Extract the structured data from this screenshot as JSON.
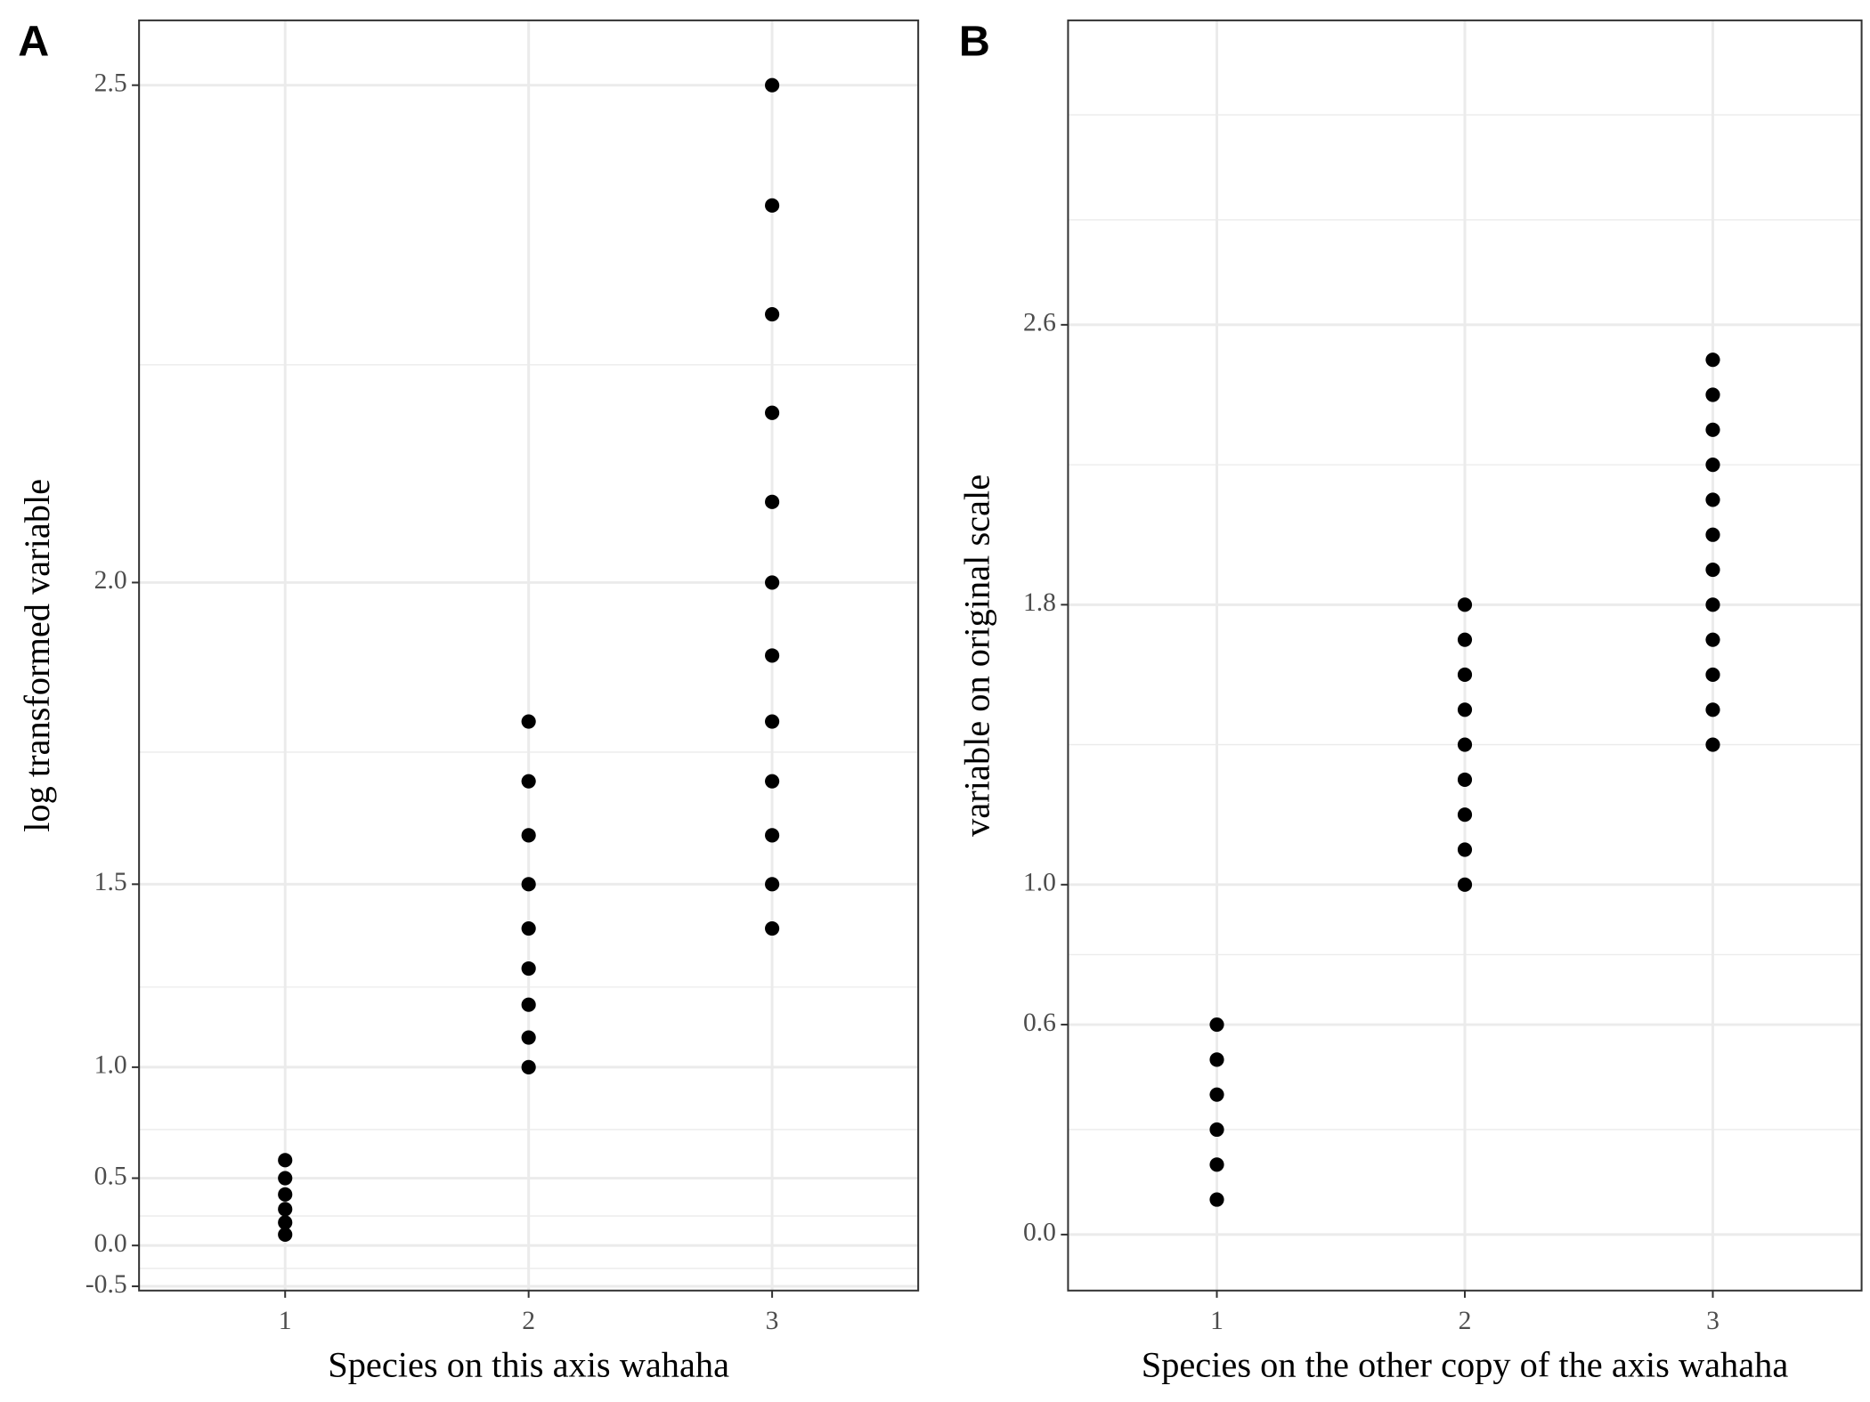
{
  "chart_data": [
    {
      "type": "scatter",
      "panel_label": "A",
      "x_label": "Species on this axis wahaha",
      "y_label": "log transformed variable",
      "yscale": "exp",
      "color": "#000000",
      "grid": true,
      "x": [
        1,
        1,
        1,
        1,
        1,
        1,
        2,
        2,
        2,
        2,
        2,
        2,
        2,
        2,
        2,
        3,
        3,
        3,
        3,
        3,
        3,
        3,
        3,
        3,
        3,
        3,
        3
      ],
      "y": [
        0.1,
        0.2,
        0.3,
        0.4,
        0.5,
        0.6,
        1.0,
        1.1,
        1.2,
        1.3,
        1.4,
        1.5,
        1.6,
        1.7,
        1.8,
        1.4,
        1.5,
        1.6,
        1.7,
        1.8,
        1.9,
        2.0,
        2.1,
        2.2,
        2.3,
        2.4,
        2.5
      ],
      "xlim": [
        0.4,
        3.6
      ],
      "xticks": [
        1,
        2,
        3
      ],
      "ylim": [
        -0.57,
        2.55
      ],
      "yticks": [
        -0.5,
        {
          "value": 0,
          "label": "0.0"
        },
        0.5,
        {
          "value": 1,
          "label": "1.0"
        },
        1.5,
        {
          "value": 2,
          "label": "2.0"
        },
        2.5
      ],
      "yminor": [
        -0.25,
        0.25,
        0.75,
        1.25,
        1.75,
        2.25
      ]
    },
    {
      "type": "scatter",
      "panel_label": "B",
      "x_label": "Species on the other copy of the axis wahaha",
      "y_label": "variable on original scale",
      "yscale": "linear",
      "color": "#000000",
      "grid": true,
      "x": [
        1,
        1,
        1,
        1,
        1,
        1,
        2,
        2,
        2,
        2,
        2,
        2,
        2,
        2,
        2,
        3,
        3,
        3,
        3,
        3,
        3,
        3,
        3,
        3,
        3,
        3,
        3
      ],
      "y": [
        0.1,
        0.2,
        0.3,
        0.4,
        0.5,
        0.6,
        1.0,
        1.1,
        1.2,
        1.3,
        1.4,
        1.5,
        1.6,
        1.7,
        1.8,
        1.4,
        1.5,
        1.6,
        1.7,
        1.8,
        1.9,
        2.0,
        2.1,
        2.2,
        2.3,
        2.4,
        2.5
      ],
      "xlim": [
        0.4,
        3.6
      ],
      "xticks": [
        1,
        2,
        3
      ],
      "ylim": [
        -0.16,
        3.47
      ],
      "yticks": [
        {
          "value": 0,
          "label": "0.0"
        },
        0.6,
        {
          "value": 1,
          "label": "1.0"
        },
        1.8,
        2.6
      ],
      "yminor": [
        0.3,
        0.8,
        1.4,
        2.2,
        2.9,
        3.2
      ]
    }
  ]
}
